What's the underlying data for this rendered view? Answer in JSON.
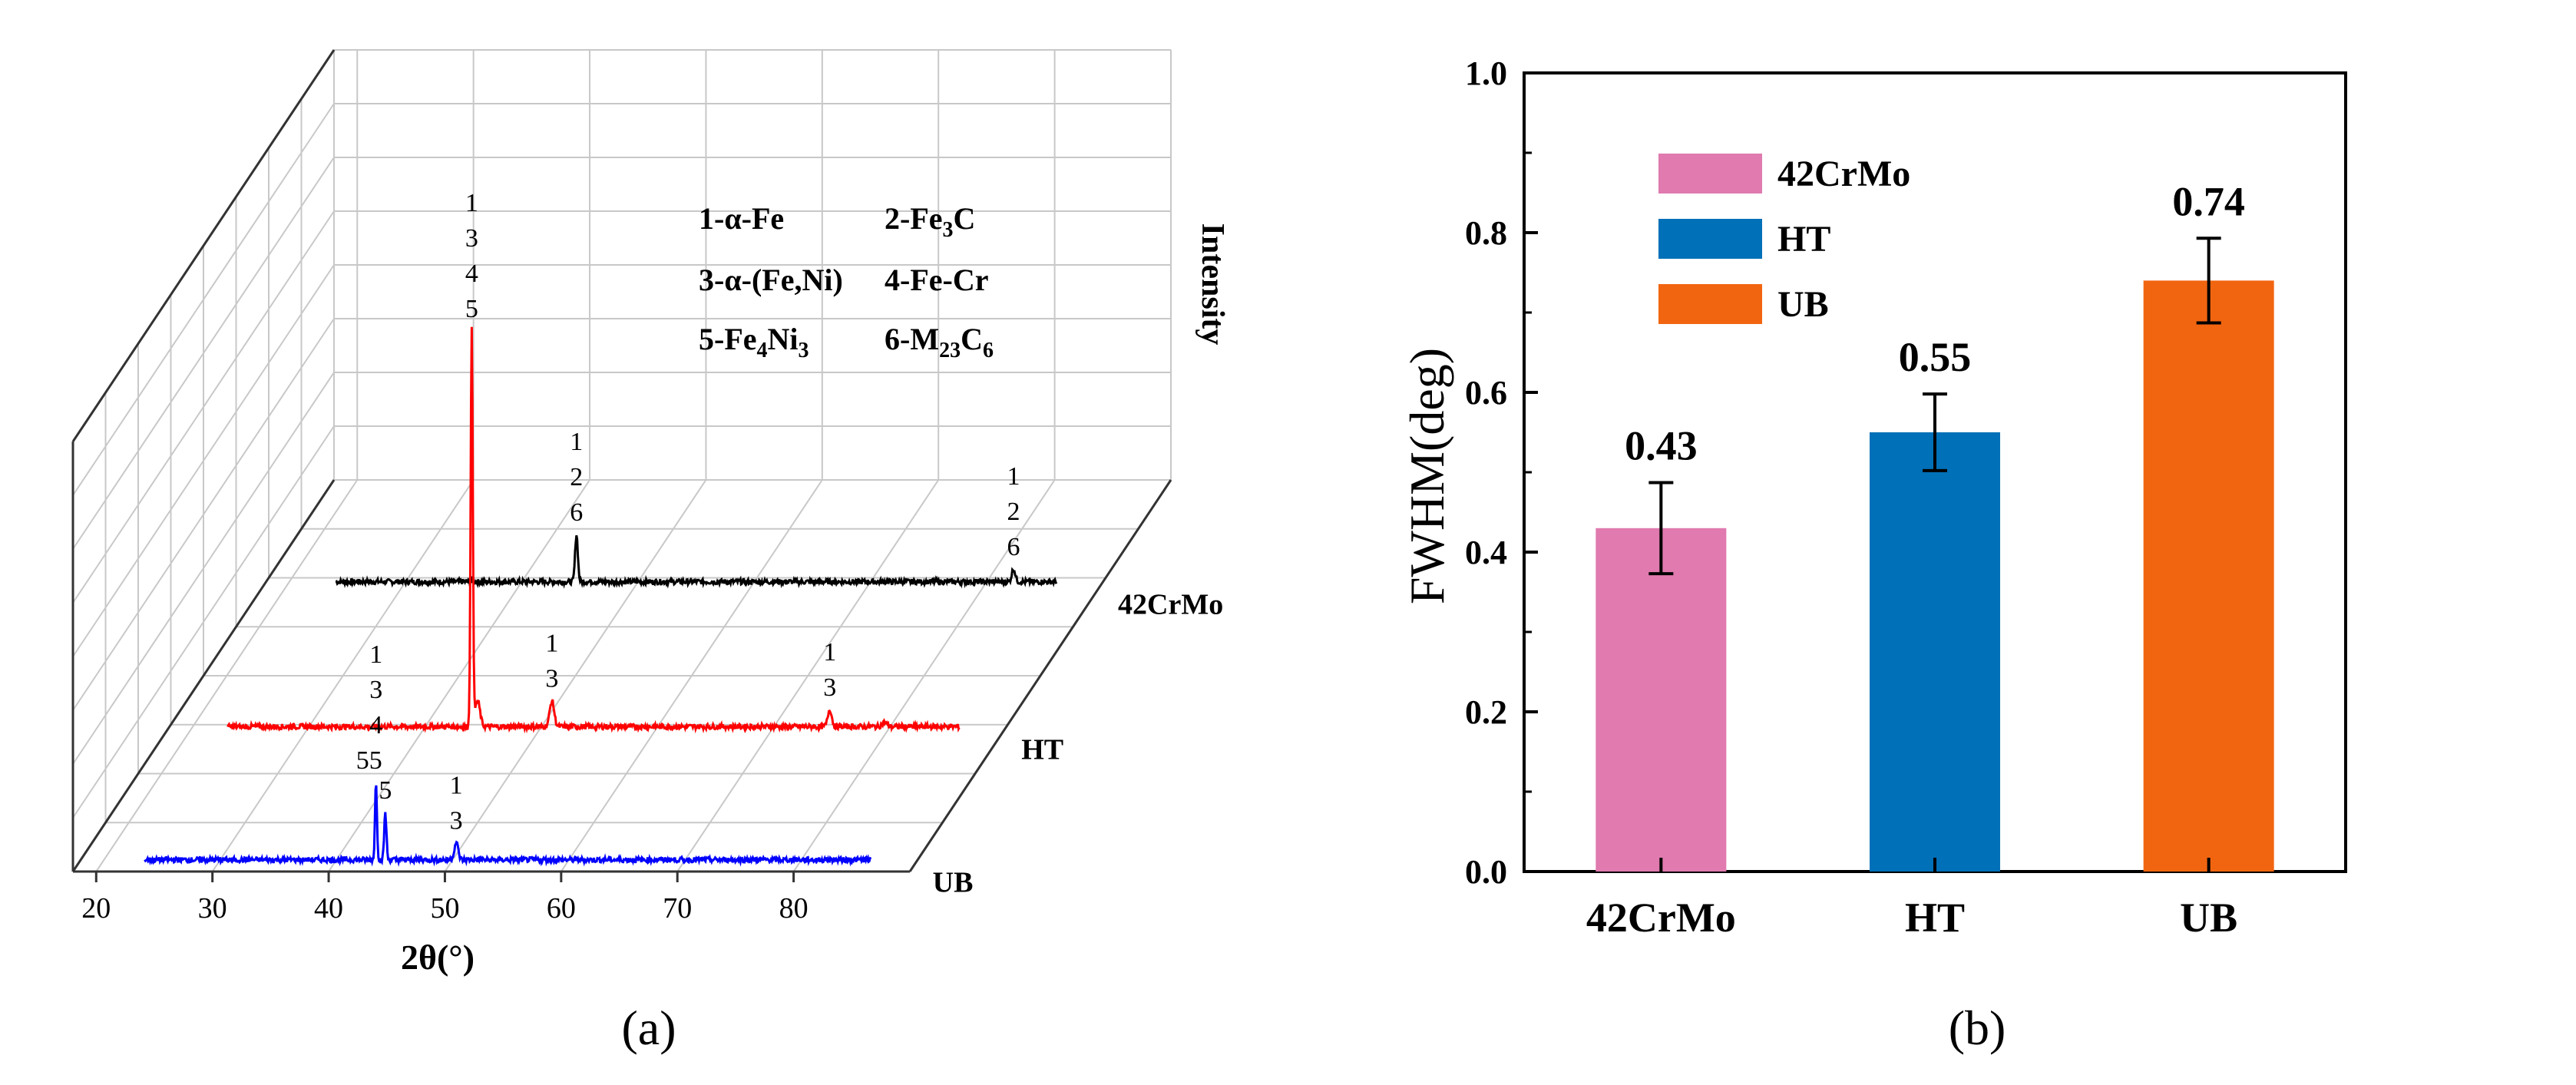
{
  "chart_data": [
    {
      "type": "line",
      "panel_label": "(a)",
      "xlabel": "2θ(°)",
      "ylabel": "Intensity",
      "xlim": [
        18,
        90
      ],
      "xticks": [
        "20",
        "30",
        "40",
        "50",
        "60",
        "70",
        "80"
      ],
      "legend_rows": [
        [
          "1-α-Fe",
          "2-Fe",
          "3",
          "C"
        ],
        [
          "3-α-(Fe,Ni)",
          "4-Fe-Cr"
        ],
        [
          "5-Fe",
          "4",
          "Ni",
          "3",
          "6-M",
          "23",
          "C",
          "6"
        ]
      ],
      "series": [
        {
          "name": "42CrMo",
          "color": "#000000",
          "baseline": 0,
          "peaks": [
            {
              "x": 44.7,
              "height": 0.11,
              "width": 0.28
            },
            {
              "x": 82.3,
              "height": 0.03,
              "width": 0.35
            }
          ],
          "peak_labels": [
            {
              "x": 44.7,
              "lines": [
                "1",
                "2",
                "6"
              ]
            },
            {
              "x": 82.3,
              "lines": [
                "1",
                "2",
                "6"
              ]
            }
          ]
        },
        {
          "name": "HT",
          "color": "#ff0000",
          "baseline": 0,
          "peaks": [
            {
              "x": 44.0,
              "height": 0.92,
              "width": 0.22
            },
            {
              "x": 44.5,
              "height": 0.06,
              "width": 0.5
            },
            {
              "x": 50.9,
              "height": 0.06,
              "width": 0.45
            },
            {
              "x": 74.8,
              "height": 0.04,
              "width": 0.4
            },
            {
              "x": 79.5,
              "height": 0.01,
              "width": 0.5
            }
          ],
          "peak_labels": [
            {
              "x": 44.0,
              "lines": [
                "1",
                "3",
                "4",
                "5"
              ]
            },
            {
              "x": 50.9,
              "lines": [
                "1",
                "3"
              ]
            },
            {
              "x": 74.8,
              "lines": [
                "1",
                "3"
              ]
            }
          ]
        },
        {
          "name": "UB",
          "color": "#0000ff",
          "baseline": 0,
          "peaks": [
            {
              "x": 43.4,
              "height": 0.18,
              "width": 0.2
            },
            {
              "x": 44.2,
              "height": 0.11,
              "width": 0.22
            },
            {
              "x": 50.3,
              "height": 0.04,
              "width": 0.4
            }
          ],
          "peak_labels": [
            {
              "x": 43.4,
              "lines": [
                "1",
                "3",
                "4",
                "5"
              ],
              "prefix": "5"
            },
            {
              "x": 44.2,
              "lines": [
                "5"
              ]
            },
            {
              "x": 50.3,
              "lines": [
                "1",
                "3"
              ]
            }
          ]
        }
      ]
    },
    {
      "type": "bar",
      "panel_label": "(b)",
      "categories": [
        "42CrMo",
        "HT",
        "UB"
      ],
      "values": [
        0.43,
        0.55,
        0.74
      ],
      "value_labels": [
        "0.43",
        "0.55",
        "0.74"
      ],
      "errors": [
        0.057,
        0.048,
        0.053
      ],
      "colors": [
        "#e07aaf",
        "#0070b8",
        "#f26510"
      ],
      "ylabel": "FWHM(deg)",
      "ylim": [
        0.0,
        1.0
      ],
      "yticks": [
        "0.0",
        "0.2",
        "0.4",
        "0.6",
        "0.8",
        "1.0"
      ],
      "legend": [
        "42CrMo",
        "HT",
        "UB"
      ]
    }
  ]
}
